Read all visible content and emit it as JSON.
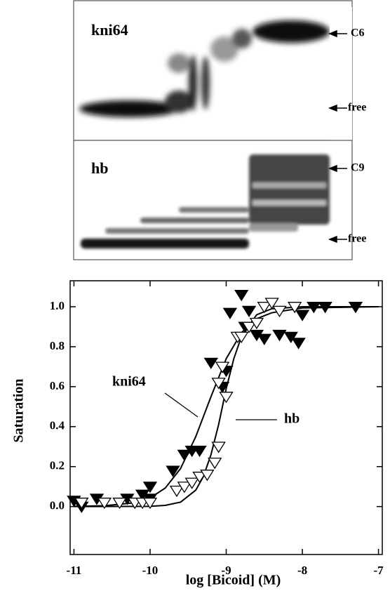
{
  "gels": [
    {
      "label": "kni64",
      "bands": [
        {
          "label": "C6"
        },
        {
          "label": "free"
        }
      ]
    },
    {
      "label": "hb",
      "bands": [
        {
          "label": "C9"
        },
        {
          "label": "free"
        }
      ]
    }
  ],
  "chart_data": {
    "type": "scatter",
    "xlabel": "log [Bicoid] (M)",
    "ylabel": "Saturation",
    "xlim": [
      -11.05,
      -6.95
    ],
    "ylim": [
      -0.24,
      1.13
    ],
    "xticks": [
      -11,
      -10,
      -9,
      -8,
      -7
    ],
    "yticks": [
      {
        "value": 0,
        "label": "0.0"
      },
      0.2,
      0.4,
      0.6,
      0.8,
      {
        "value": 1,
        "label": "1.0"
      }
    ],
    "series": [
      {
        "name": "kni64",
        "color": "#000000",
        "filled": true,
        "x": [
          -11.0,
          -10.9,
          -10.7,
          -10.3,
          -10.2,
          -10.1,
          -10.0,
          -10.0,
          -9.7,
          -9.55,
          -9.45,
          -9.35,
          -9.2,
          -9.05,
          -9.0,
          -8.95,
          -8.8,
          -8.75,
          -8.7,
          -8.6,
          -8.5,
          -8.3,
          -8.15,
          -8.05,
          -8.0,
          -7.85,
          -7.7,
          -7.3
        ],
        "values": [
          0.03,
          0.0,
          0.04,
          0.04,
          0.02,
          0.06,
          0.04,
          0.1,
          0.18,
          0.26,
          0.28,
          0.28,
          0.72,
          0.6,
          0.68,
          0.97,
          1.06,
          0.9,
          0.98,
          0.86,
          0.84,
          0.86,
          0.85,
          0.82,
          0.96,
          1.0,
          1.0,
          1.0
        ],
        "fit_x": [
          -11.0,
          -10.6,
          -10.2,
          -10.0,
          -9.8,
          -9.6,
          -9.4,
          -9.2,
          -9.0,
          -8.8,
          -8.6,
          -8.4,
          -8.0,
          -7.0
        ],
        "fit_values": [
          0.001,
          0.004,
          0.019,
          0.043,
          0.093,
          0.19,
          0.35,
          0.55,
          0.74,
          0.87,
          0.94,
          0.97,
          0.994,
          1.0
        ]
      },
      {
        "name": "hb",
        "color": "#000000",
        "filled": false,
        "x": [
          -10.9,
          -10.6,
          -10.4,
          -10.2,
          -10.1,
          -10.0,
          -9.65,
          -9.55,
          -9.45,
          -9.35,
          -9.25,
          -9.15,
          -9.1,
          -9.1,
          -9.05,
          -9.0,
          -8.85,
          -8.8,
          -8.7,
          -8.6,
          -8.5,
          -8.4,
          -8.3,
          -8.1
        ],
        "values": [
          0.02,
          0.02,
          0.02,
          0.02,
          0.02,
          0.02,
          0.08,
          0.1,
          0.12,
          0.15,
          0.16,
          0.22,
          0.3,
          0.62,
          0.7,
          0.55,
          0.85,
          0.85,
          0.9,
          0.92,
          1.0,
          1.02,
          0.98,
          1.0
        ],
        "fit_x": [
          -11.0,
          -10.0,
          -9.8,
          -9.6,
          -9.4,
          -9.3,
          -9.2,
          -9.1,
          -9.0,
          -8.9,
          -8.8,
          -8.6,
          -8.4,
          -8.0,
          -7.0
        ],
        "fit_values": [
          0.0,
          0.001,
          0.006,
          0.022,
          0.082,
          0.15,
          0.26,
          0.41,
          0.59,
          0.74,
          0.85,
          0.96,
          0.99,
          1.0,
          1.0
        ]
      }
    ]
  }
}
